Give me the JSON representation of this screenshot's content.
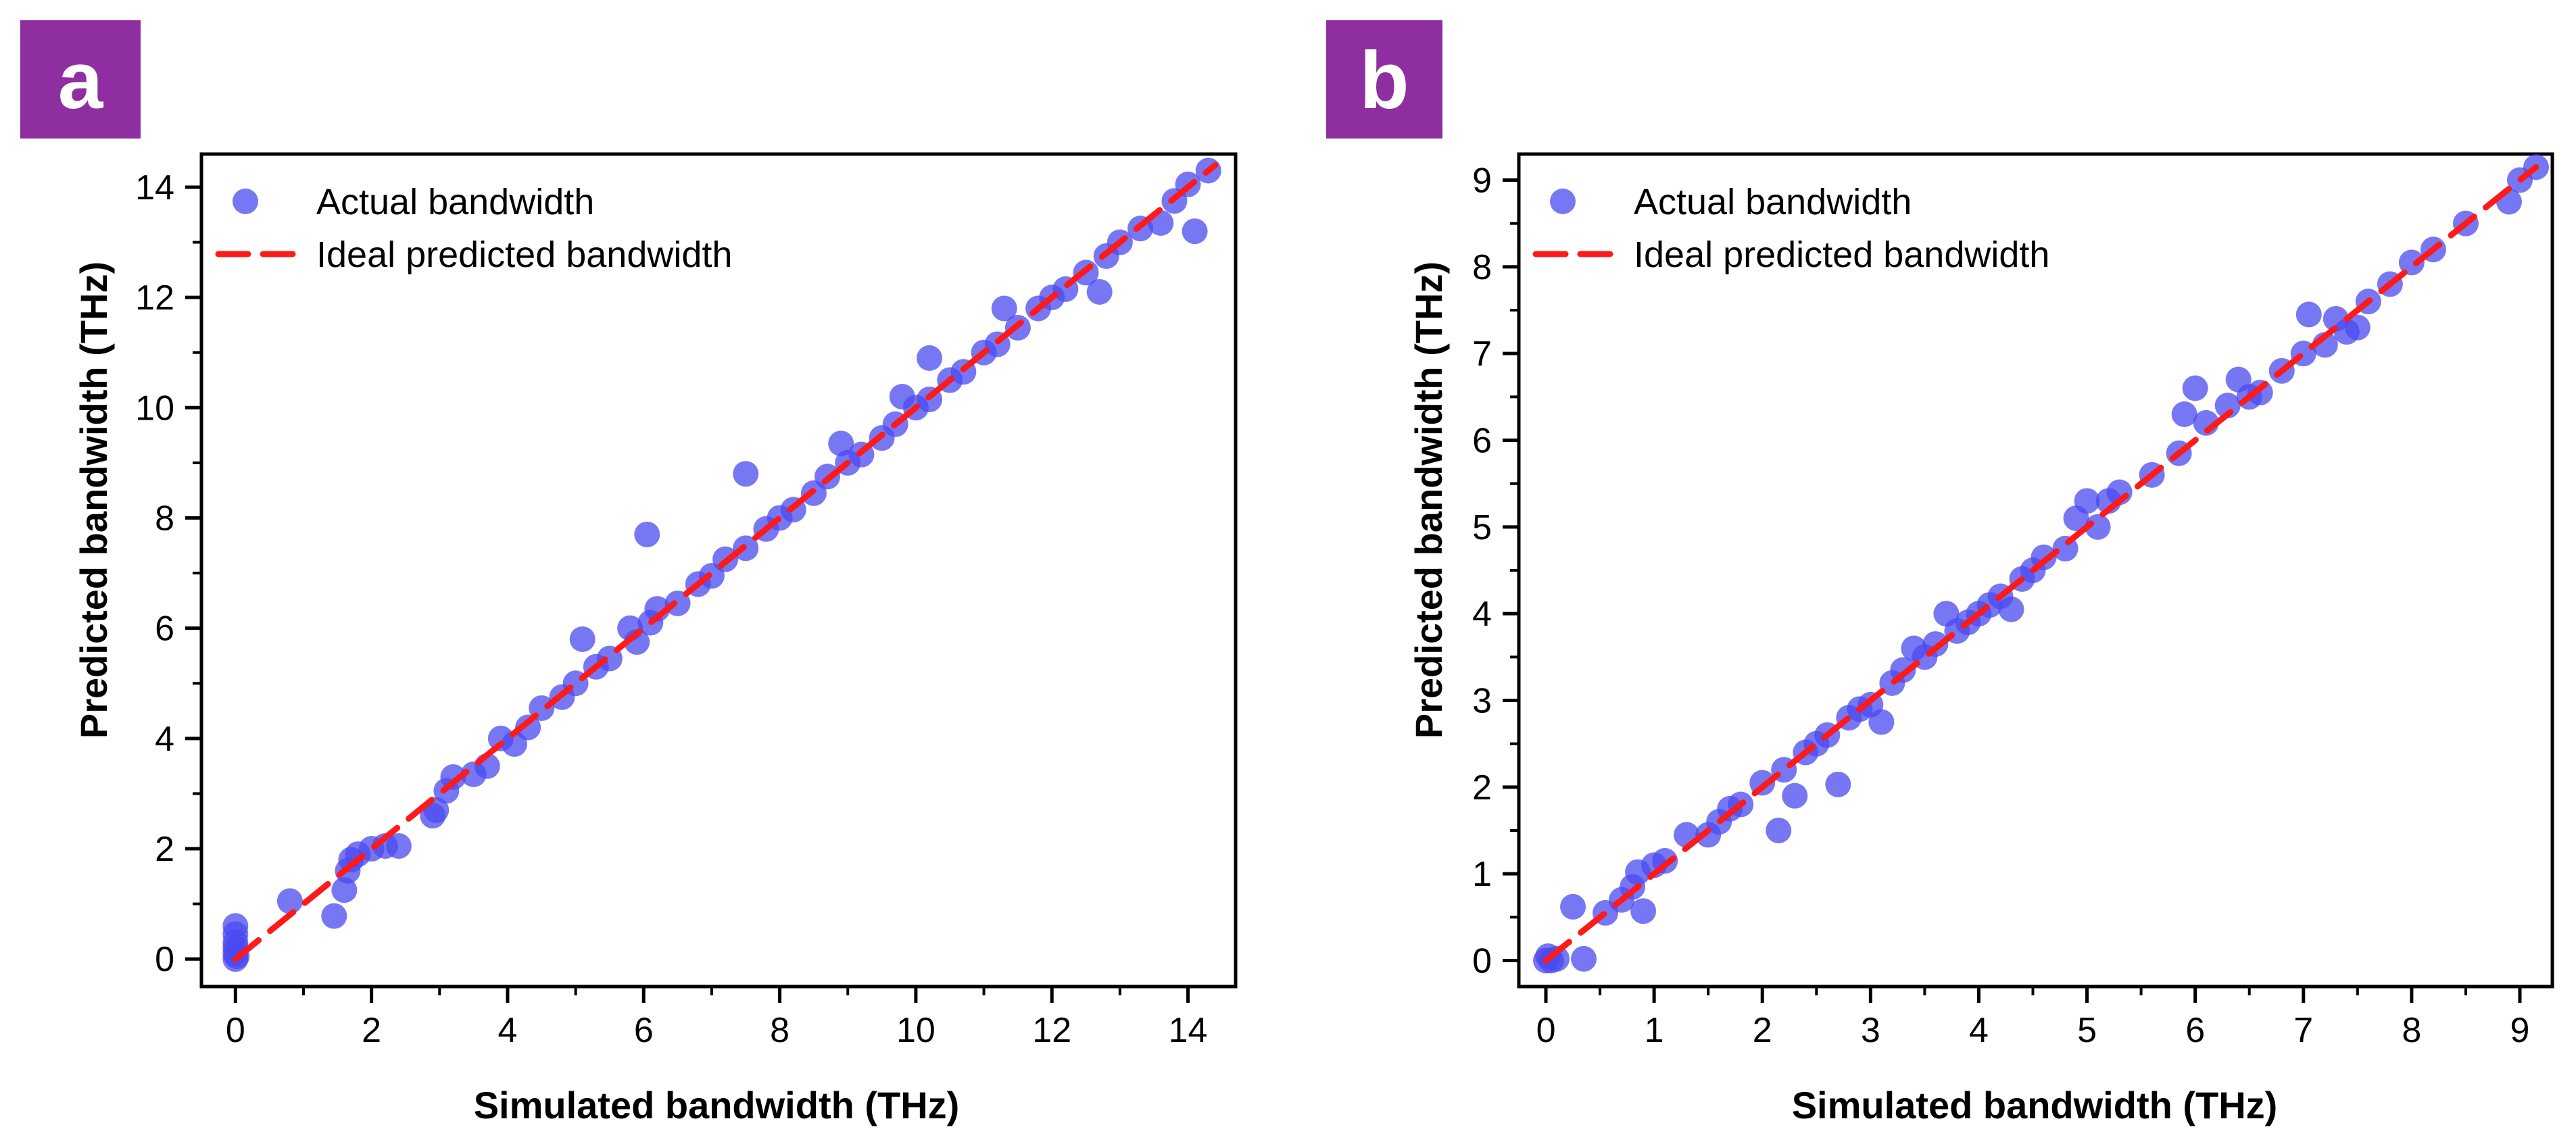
{
  "colors": {
    "badge": "#8e2ea0",
    "points": "#4a4af0",
    "ideal_line": "#ff1a1a",
    "axes": "#000000"
  },
  "icons": {
    "legend_marker": "circle-marker-icon",
    "legend_line": "dashed-line-icon"
  },
  "chart_data": [
    {
      "type": "scatter",
      "panel_label": "a",
      "title": "",
      "xlabel": "Simulated bandwidth (THz)",
      "ylabel": "Predicted bandwidth (THz)",
      "xlim": [
        -0.5,
        14.7
      ],
      "ylim": [
        -0.5,
        14.6
      ],
      "xticks": [
        0,
        2,
        4,
        6,
        8,
        10,
        12,
        14
      ],
      "yticks": [
        0,
        2,
        4,
        6,
        8,
        10,
        12,
        14
      ],
      "legend_position": "top-left",
      "legend": [
        "Actual bandwidth",
        "Ideal predicted bandwidth"
      ],
      "ideal_line": {
        "x": [
          0,
          14.4
        ],
        "y": [
          0,
          14.4
        ]
      },
      "series": [
        {
          "name": "Actual bandwidth",
          "points": [
            [
              0,
              0.6
            ],
            [
              0,
              0.45
            ],
            [
              0,
              0.3
            ],
            [
              0,
              0.2
            ],
            [
              0,
              0.1
            ],
            [
              0,
              0.0
            ],
            [
              0.02,
              0.05
            ],
            [
              0.8,
              1.05
            ],
            [
              1.45,
              0.78
            ],
            [
              1.6,
              1.25
            ],
            [
              1.65,
              1.6
            ],
            [
              1.7,
              1.8
            ],
            [
              1.8,
              1.9
            ],
            [
              2.0,
              2.0
            ],
            [
              2.2,
              2.05
            ],
            [
              2.4,
              2.05
            ],
            [
              2.9,
              2.6
            ],
            [
              2.95,
              2.7
            ],
            [
              3.1,
              3.05
            ],
            [
              3.2,
              3.3
            ],
            [
              3.5,
              3.35
            ],
            [
              3.7,
              3.5
            ],
            [
              3.9,
              4.0
            ],
            [
              4.1,
              3.9
            ],
            [
              4.3,
              4.2
            ],
            [
              4.5,
              4.55
            ],
            [
              4.8,
              4.75
            ],
            [
              5.0,
              5.0
            ],
            [
              5.1,
              5.8
            ],
            [
              5.3,
              5.3
            ],
            [
              5.5,
              5.45
            ],
            [
              5.8,
              6.0
            ],
            [
              5.9,
              5.75
            ],
            [
              6.05,
              7.7
            ],
            [
              6.1,
              6.1
            ],
            [
              6.2,
              6.35
            ],
            [
              6.5,
              6.45
            ],
            [
              6.8,
              6.8
            ],
            [
              7.0,
              6.95
            ],
            [
              7.2,
              7.25
            ],
            [
              7.5,
              8.8
            ],
            [
              7.5,
              7.45
            ],
            [
              7.8,
              7.8
            ],
            [
              8.0,
              8.0
            ],
            [
              8.2,
              8.15
            ],
            [
              8.5,
              8.45
            ],
            [
              8.7,
              8.75
            ],
            [
              8.9,
              9.35
            ],
            [
              9.0,
              9.0
            ],
            [
              9.2,
              9.15
            ],
            [
              9.5,
              9.45
            ],
            [
              9.7,
              9.7
            ],
            [
              9.8,
              10.2
            ],
            [
              10.0,
              10.0
            ],
            [
              10.2,
              10.9
            ],
            [
              10.2,
              10.15
            ],
            [
              10.5,
              10.5
            ],
            [
              10.7,
              10.65
            ],
            [
              11.0,
              11.0
            ],
            [
              11.2,
              11.15
            ],
            [
              11.3,
              11.8
            ],
            [
              11.5,
              11.45
            ],
            [
              11.8,
              11.8
            ],
            [
              12.0,
              12.0
            ],
            [
              12.2,
              12.15
            ],
            [
              12.5,
              12.45
            ],
            [
              12.7,
              12.1
            ],
            [
              12.8,
              12.75
            ],
            [
              13.0,
              13.0
            ],
            [
              13.3,
              13.25
            ],
            [
              13.6,
              13.35
            ],
            [
              13.8,
              13.75
            ],
            [
              14.0,
              14.05
            ],
            [
              14.1,
              13.2
            ],
            [
              14.3,
              14.3
            ]
          ]
        }
      ]
    },
    {
      "type": "scatter",
      "panel_label": "b",
      "title": "",
      "xlabel": "Simulated bandwidth (THz)",
      "ylabel": "Predicted bandwidth (THz)",
      "xlim": [
        -0.25,
        9.3
      ],
      "ylim": [
        -0.3,
        9.3
      ],
      "xticks": [
        0,
        1,
        2,
        3,
        4,
        5,
        6,
        7,
        8,
        9
      ],
      "yticks": [
        0,
        1,
        2,
        3,
        4,
        5,
        6,
        7,
        8,
        9
      ],
      "legend_position": "top-left",
      "legend": [
        "Actual bandwidth",
        "Ideal predicted bandwidth"
      ],
      "ideal_line": {
        "x": [
          0,
          9.15
        ],
        "y": [
          0,
          9.15
        ]
      },
      "series": [
        {
          "name": "Actual bandwidth",
          "points": [
            [
              0,
              0.0
            ],
            [
              0.02,
              0.05
            ],
            [
              0.05,
              0.0
            ],
            [
              0.1,
              0.02
            ],
            [
              0.25,
              0.62
            ],
            [
              0.35,
              0.02
            ],
            [
              0.55,
              0.55
            ],
            [
              0.7,
              0.7
            ],
            [
              0.8,
              0.85
            ],
            [
              0.85,
              1.02
            ],
            [
              0.9,
              0.57
            ],
            [
              1.0,
              1.1
            ],
            [
              1.1,
              1.15
            ],
            [
              1.3,
              1.45
            ],
            [
              1.5,
              1.45
            ],
            [
              1.6,
              1.6
            ],
            [
              1.7,
              1.75
            ],
            [
              1.8,
              1.8
            ],
            [
              2.0,
              2.05
            ],
            [
              2.15,
              1.5
            ],
            [
              2.2,
              2.2
            ],
            [
              2.3,
              1.9
            ],
            [
              2.4,
              2.4
            ],
            [
              2.5,
              2.5
            ],
            [
              2.6,
              2.6
            ],
            [
              2.7,
              2.03
            ],
            [
              2.8,
              2.8
            ],
            [
              2.9,
              2.9
            ],
            [
              3.0,
              2.95
            ],
            [
              3.1,
              2.75
            ],
            [
              3.2,
              3.2
            ],
            [
              3.3,
              3.35
            ],
            [
              3.4,
              3.6
            ],
            [
              3.5,
              3.5
            ],
            [
              3.6,
              3.65
            ],
            [
              3.7,
              4.0
            ],
            [
              3.8,
              3.8
            ],
            [
              3.9,
              3.9
            ],
            [
              4.0,
              4.0
            ],
            [
              4.1,
              4.1
            ],
            [
              4.2,
              4.2
            ],
            [
              4.3,
              4.05
            ],
            [
              4.4,
              4.4
            ],
            [
              4.5,
              4.5
            ],
            [
              4.6,
              4.65
            ],
            [
              4.8,
              4.75
            ],
            [
              4.9,
              5.1
            ],
            [
              5.0,
              5.3
            ],
            [
              5.1,
              5.0
            ],
            [
              5.2,
              5.3
            ],
            [
              5.3,
              5.4
            ],
            [
              5.6,
              5.6
            ],
            [
              5.85,
              5.85
            ],
            [
              5.9,
              6.3
            ],
            [
              6.0,
              6.6
            ],
            [
              6.1,
              6.2
            ],
            [
              6.3,
              6.4
            ],
            [
              6.4,
              6.7
            ],
            [
              6.5,
              6.5
            ],
            [
              6.6,
              6.55
            ],
            [
              6.8,
              6.8
            ],
            [
              7.0,
              7.0
            ],
            [
              7.05,
              7.45
            ],
            [
              7.2,
              7.1
            ],
            [
              7.3,
              7.4
            ],
            [
              7.4,
              7.25
            ],
            [
              7.5,
              7.3
            ],
            [
              7.6,
              7.6
            ],
            [
              7.8,
              7.8
            ],
            [
              8.0,
              8.05
            ],
            [
              8.2,
              8.2
            ],
            [
              8.5,
              8.5
            ],
            [
              8.9,
              8.75
            ],
            [
              9.0,
              9.0
            ],
            [
              9.15,
              9.15
            ]
          ]
        }
      ]
    }
  ]
}
